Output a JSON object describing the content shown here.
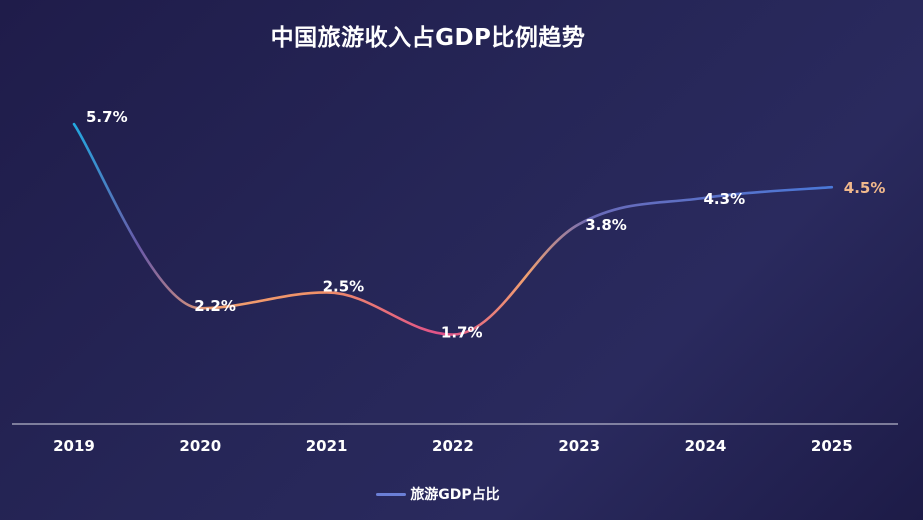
{
  "chart_data": {
    "type": "line",
    "title": "中国旅游收入占GDP比例趋势",
    "categories": [
      "2019",
      "2020",
      "2021",
      "2022",
      "2023",
      "2024",
      "2025"
    ],
    "series": [
      {
        "name": "旅游GDP占比",
        "values": [
          5.7,
          2.2,
          2.5,
          1.7,
          3.8,
          4.3,
          4.5
        ],
        "labels": [
          "5.7%",
          "2.2%",
          "2.5%",
          "1.7%",
          "3.8%",
          "4.3%",
          "4.5%"
        ]
      }
    ],
    "xlabel": "",
    "ylabel": "",
    "ylim": [
      0,
      6.5
    ],
    "grid": false,
    "legend_position": "bottom-center",
    "colors": {
      "start": "#18b4e8",
      "mid": "#6a5aa8",
      "warm": "#f0a070",
      "pink": "#e0508a",
      "end": "#4a78d8",
      "highlight_label": "#f1b98c"
    }
  }
}
